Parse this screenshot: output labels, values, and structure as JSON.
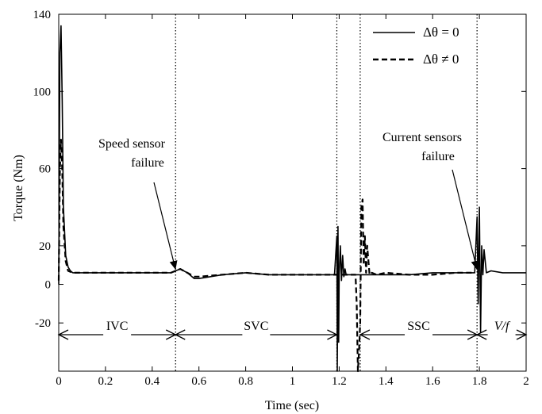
{
  "chart_data": {
    "type": "line",
    "title": "",
    "xlabel": "Time (sec)",
    "ylabel": "Torque (Nm)",
    "xlim": [
      0,
      2
    ],
    "ylim": [
      -45,
      140
    ],
    "x_ticks": [
      0,
      0.2,
      0.4,
      0.6,
      0.8,
      1,
      1.2,
      1.4,
      1.6,
      1.8,
      2
    ],
    "x_tick_labels": [
      "0",
      "0.2",
      "0.4",
      "0.6",
      "0.8",
      "1",
      "1.2",
      "1.4",
      "1.6",
      "1.8",
      "2"
    ],
    "y_ticks": [
      140,
      100,
      60,
      20,
      0,
      -20
    ],
    "y_tick_labels": [
      "140",
      "100",
      "60",
      "20",
      "0",
      "-20"
    ],
    "grid": false,
    "legend_position": "top-right",
    "series": [
      {
        "name": "Δθ = 0",
        "style": "solid",
        "x": [
          0,
          0.005,
          0.01,
          0.015,
          0.02,
          0.03,
          0.04,
          0.05,
          0.06,
          0.08,
          0.1,
          0.2,
          0.3,
          0.4,
          0.48,
          0.5,
          0.52,
          0.55,
          0.58,
          0.6,
          0.65,
          0.7,
          0.8,
          0.9,
          1.0,
          1.1,
          1.18,
          1.19,
          1.192,
          1.195,
          1.198,
          1.2,
          1.205,
          1.21,
          1.215,
          1.22,
          1.225,
          1.23,
          1.24,
          1.26,
          1.28,
          1.3,
          1.4,
          1.5,
          1.6,
          1.7,
          1.78,
          1.79,
          1.795,
          1.8,
          1.805,
          1.81,
          1.815,
          1.82,
          1.83,
          1.85,
          1.9,
          2.0
        ],
        "y": [
          0,
          120,
          134,
          95,
          40,
          15,
          9,
          7,
          6,
          6,
          6,
          6,
          6,
          6,
          6,
          7,
          8,
          6,
          3,
          3,
          4,
          5,
          6,
          5,
          5,
          5,
          5,
          25,
          -45,
          30,
          -30,
          5,
          20,
          2,
          15,
          4,
          8,
          5,
          5,
          5,
          5,
          5,
          5,
          5,
          6,
          6,
          6,
          35,
          -10,
          40,
          -25,
          20,
          5,
          18,
          6,
          7,
          6,
          6
        ]
      },
      {
        "name": "Δθ ≠ 0",
        "style": "dashed",
        "x": [
          0,
          0.005,
          0.01,
          0.015,
          0.02,
          0.03,
          0.04,
          0.06,
          0.1,
          0.2,
          0.3,
          0.4,
          0.48,
          0.5,
          0.52,
          0.55,
          0.58,
          0.6,
          0.7,
          0.8,
          0.9,
          1.0,
          1.1,
          1.18,
          1.2,
          1.22,
          1.24,
          1.26,
          1.27,
          1.275,
          1.28,
          1.285,
          1.29,
          1.295,
          1.3,
          1.305,
          1.31,
          1.315,
          1.32,
          1.33,
          1.34,
          1.36,
          1.4,
          1.5,
          1.6,
          1.7,
          1.78
        ],
        "y": [
          2,
          60,
          75,
          60,
          30,
          12,
          7,
          6,
          6,
          6,
          6,
          6,
          6,
          7,
          8,
          6,
          4,
          4,
          5,
          6,
          5,
          5,
          5,
          5,
          5,
          5,
          5,
          5,
          5,
          -10,
          -45,
          -35,
          -20,
          40,
          44,
          10,
          25,
          6,
          20,
          5,
          6,
          5,
          6,
          5,
          5,
          6,
          6
        ]
      }
    ],
    "vertical_markers": [
      0.5,
      1.19,
      1.29,
      1.79
    ],
    "regions": [
      {
        "label": "IVC",
        "start": 0,
        "end": 0.5
      },
      {
        "label": "SVC",
        "start": 0.5,
        "end": 1.19
      },
      {
        "label": "SSC",
        "start": 1.29,
        "end": 1.79
      },
      {
        "label": "V/f",
        "start": 1.79,
        "end": 2
      }
    ],
    "annotations": [
      {
        "lines": [
          "Speed sensor",
          "failure"
        ],
        "target": [
          0.5,
          6
        ]
      },
      {
        "lines": [
          "Current sensors",
          "failure"
        ],
        "target": [
          1.79,
          6
        ]
      }
    ],
    "legend": {
      "entries": [
        {
          "label": "Δθ = 0",
          "style": "solid"
        },
        {
          "label": "Δθ ≠ 0",
          "style": "dashed"
        }
      ]
    }
  }
}
